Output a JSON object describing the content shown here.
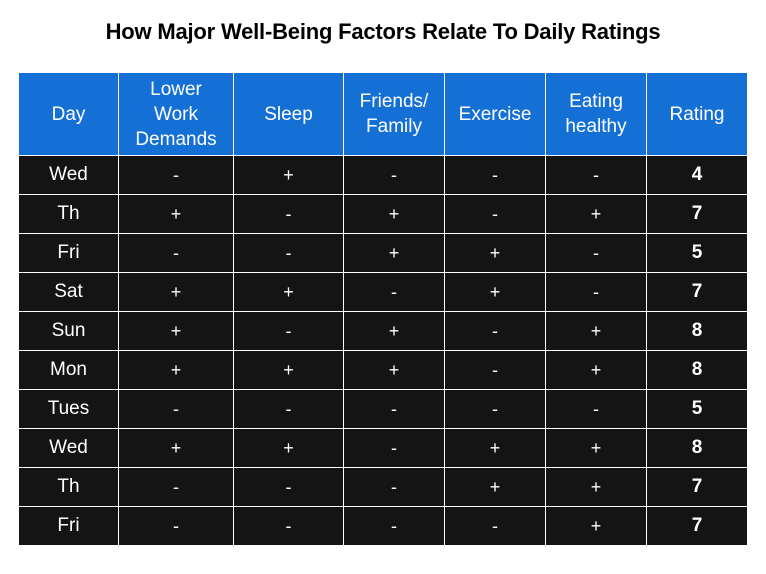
{
  "chart_data": {
    "type": "table",
    "title": "How Major Well-Being Factors Relate To Daily Ratings",
    "columns": [
      {
        "lines": [
          "Day"
        ]
      },
      {
        "lines": [
          "Lower",
          "Work",
          "Demands"
        ]
      },
      {
        "lines": [
          "Sleep"
        ]
      },
      {
        "lines": [
          "Friends/",
          "Family"
        ]
      },
      {
        "lines": [
          "Exercise"
        ]
      },
      {
        "lines": [
          "Eating",
          "healthy"
        ]
      },
      {
        "lines": [
          "Rating"
        ]
      }
    ],
    "rows": [
      {
        "day": "Wed",
        "lower_work_demands": "-",
        "sleep": "+",
        "friends_family": "-",
        "exercise": "-",
        "eating_healthy": "-",
        "rating": "4"
      },
      {
        "day": "Th",
        "lower_work_demands": "+",
        "sleep": "-",
        "friends_family": "+",
        "exercise": "-",
        "eating_healthy": "+",
        "rating": "7"
      },
      {
        "day": "Fri",
        "lower_work_demands": "-",
        "sleep": "-",
        "friends_family": "+",
        "exercise": "+",
        "eating_healthy": "-",
        "rating": "5"
      },
      {
        "day": "Sat",
        "lower_work_demands": "+",
        "sleep": "+",
        "friends_family": "-",
        "exercise": "+",
        "eating_healthy": "-",
        "rating": "7"
      },
      {
        "day": "Sun",
        "lower_work_demands": "+",
        "sleep": "-",
        "friends_family": "+",
        "exercise": "-",
        "eating_healthy": "+",
        "rating": "8"
      },
      {
        "day": "Mon",
        "lower_work_demands": "+",
        "sleep": "+",
        "friends_family": "+",
        "exercise": "-",
        "eating_healthy": "+",
        "rating": "8"
      },
      {
        "day": "Tues",
        "lower_work_demands": "-",
        "sleep": "-",
        "friends_family": "-",
        "exercise": "-",
        "eating_healthy": "-",
        "rating": "5"
      },
      {
        "day": "Wed",
        "lower_work_demands": "+",
        "sleep": "+",
        "friends_family": "-",
        "exercise": "+",
        "eating_healthy": "+",
        "rating": "8"
      },
      {
        "day": "Th",
        "lower_work_demands": "-",
        "sleep": "-",
        "friends_family": "-",
        "exercise": "+",
        "eating_healthy": "+",
        "rating": "7"
      },
      {
        "day": "Fri",
        "lower_work_demands": "-",
        "sleep": "-",
        "friends_family": "-",
        "exercise": "-",
        "eating_healthy": "+",
        "rating": "7"
      }
    ]
  },
  "colors": {
    "header_bg": "#1570d6",
    "body_bg": "#141414",
    "text": "#ffffff",
    "border": "#ffffff"
  }
}
